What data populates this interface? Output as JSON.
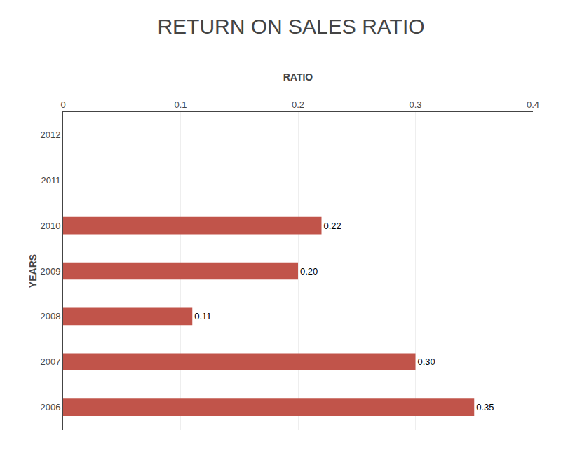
{
  "chart_data": {
    "type": "bar",
    "orientation": "horizontal",
    "title": "RETURN ON SALES RATIO",
    "xlabel": "RATIO",
    "ylabel": "YEARS",
    "categories": [
      "2012",
      "2011",
      "2010",
      "2009",
      "2008",
      "2007",
      "2006"
    ],
    "values": [
      0,
      0,
      0.22,
      0.2,
      0.11,
      0.3,
      0.35
    ],
    "value_labels": [
      null,
      null,
      "0.22",
      "0.20",
      "0.11",
      "0.30",
      "0.35"
    ],
    "data_labels": true,
    "color": "#c1544a",
    "xlim": [
      0,
      0.4
    ],
    "xticks": [
      0,
      0.1,
      0.2,
      0.3,
      0.4
    ],
    "grid": true
  }
}
